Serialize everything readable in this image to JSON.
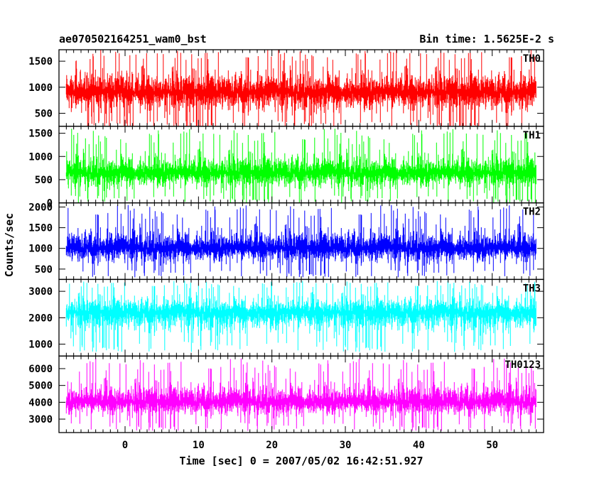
{
  "chart_data": {
    "type": "line",
    "title": "ae070502164251_wam0_bst",
    "bin_time": "Bin time: 1.5625E-2 s",
    "xlabel": "Time [sec] 0 = 2007/05/02 16:42:51.927",
    "ylabel": "Counts/sec",
    "xlim": [
      -9,
      57
    ],
    "x_ticks": [
      0,
      10,
      20,
      30,
      40,
      50
    ],
    "x_range_data": [
      -8,
      56
    ],
    "grid": false,
    "colors": {
      "TH0": "#ff0000",
      "TH1": "#00ff00",
      "TH2": "#0000ff",
      "TH3": "#00ffff",
      "TH0123": "#ff00ff"
    },
    "panels": [
      {
        "name": "TH0",
        "color": "#ff0000",
        "ylim": [
          250,
          1720
        ],
        "y_ticks": [
          500,
          1000,
          1500
        ],
        "mean": 900,
        "low_envelope": 350,
        "high_envelope": 1500,
        "min": 200,
        "max": 1720
      },
      {
        "name": "TH1",
        "color": "#00ff00",
        "ylim": [
          0,
          1650
        ],
        "y_ticks": [
          0,
          500,
          1000,
          1500
        ],
        "mean": 640,
        "low_envelope": 160,
        "high_envelope": 1250,
        "min": 0,
        "max": 1600
      },
      {
        "name": "TH2",
        "color": "#0000ff",
        "ylim": [
          250,
          2100
        ],
        "y_ticks": [
          500,
          1000,
          1500,
          2000
        ],
        "mean": 1000,
        "low_envelope": 480,
        "high_envelope": 1700,
        "min": 300,
        "max": 2050
      },
      {
        "name": "TH3",
        "color": "#00ffff",
        "ylim": [
          550,
          3450
        ],
        "y_ticks": [
          1000,
          2000,
          3000
        ],
        "mean": 2200,
        "low_envelope": 1100,
        "high_envelope": 3100,
        "min": 700,
        "max": 3400
      },
      {
        "name": "TH0123",
        "color": "#ff00ff",
        "ylim": [
          2200,
          6750
        ],
        "y_ticks": [
          3000,
          4000,
          5000,
          6000
        ],
        "mean": 4000,
        "low_envelope": 2800,
        "high_envelope": 5700,
        "min": 2300,
        "max": 6600
      }
    ]
  }
}
